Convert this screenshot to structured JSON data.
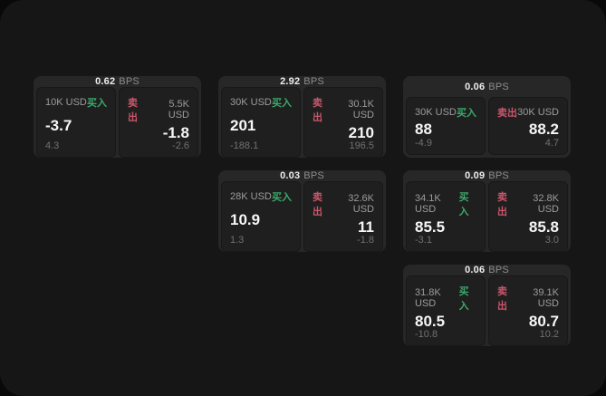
{
  "labels": {
    "unit": "BPS",
    "buy": "买入",
    "sell": "卖出"
  },
  "colors": {
    "buy": "#3aa96b",
    "sell": "#c9566b",
    "panel_bg": "#161616",
    "card_bg": "#272727",
    "subcard_bg": "#1f1f1f"
  },
  "cards": [
    {
      "col": 1,
      "row": 1,
      "bps": "0.62",
      "buy": {
        "amount": "10K USD",
        "value": "-3.7",
        "delta": "4.3"
      },
      "sell": {
        "amount": "5.5K USD",
        "value": "-1.8",
        "delta": "-2.6"
      }
    },
    {
      "col": 2,
      "row": 1,
      "bps": "2.92",
      "buy": {
        "amount": "30K USD",
        "value": "201",
        "delta": "-188.1"
      },
      "sell": {
        "amount": "30.1K USD",
        "value": "210",
        "delta": "196.5"
      }
    },
    {
      "col": 3,
      "row": 1,
      "bps": "0.06",
      "buy": {
        "amount": "30K USD",
        "value": "88",
        "delta": "-4.9"
      },
      "sell": {
        "amount": "30K USD",
        "value": "88.2",
        "delta": "4.7"
      }
    },
    {
      "col": 2,
      "row": 2,
      "bps": "0.03",
      "buy": {
        "amount": "28K USD",
        "value": "10.9",
        "delta": "1.3"
      },
      "sell": {
        "amount": "32.6K USD",
        "value": "11",
        "delta": "-1.8"
      }
    },
    {
      "col": 3,
      "row": 2,
      "bps": "0.09",
      "buy": {
        "amount": "34.1K USD",
        "value": "85.5",
        "delta": "-3.1"
      },
      "sell": {
        "amount": "32.8K USD",
        "value": "85.8",
        "delta": "3.0"
      }
    },
    {
      "col": 3,
      "row": 3,
      "bps": "0.06",
      "buy": {
        "amount": "31.8K USD",
        "value": "80.5",
        "delta": "-10.8"
      },
      "sell": {
        "amount": "39.1K USD",
        "value": "80.7",
        "delta": "10.2"
      }
    }
  ]
}
